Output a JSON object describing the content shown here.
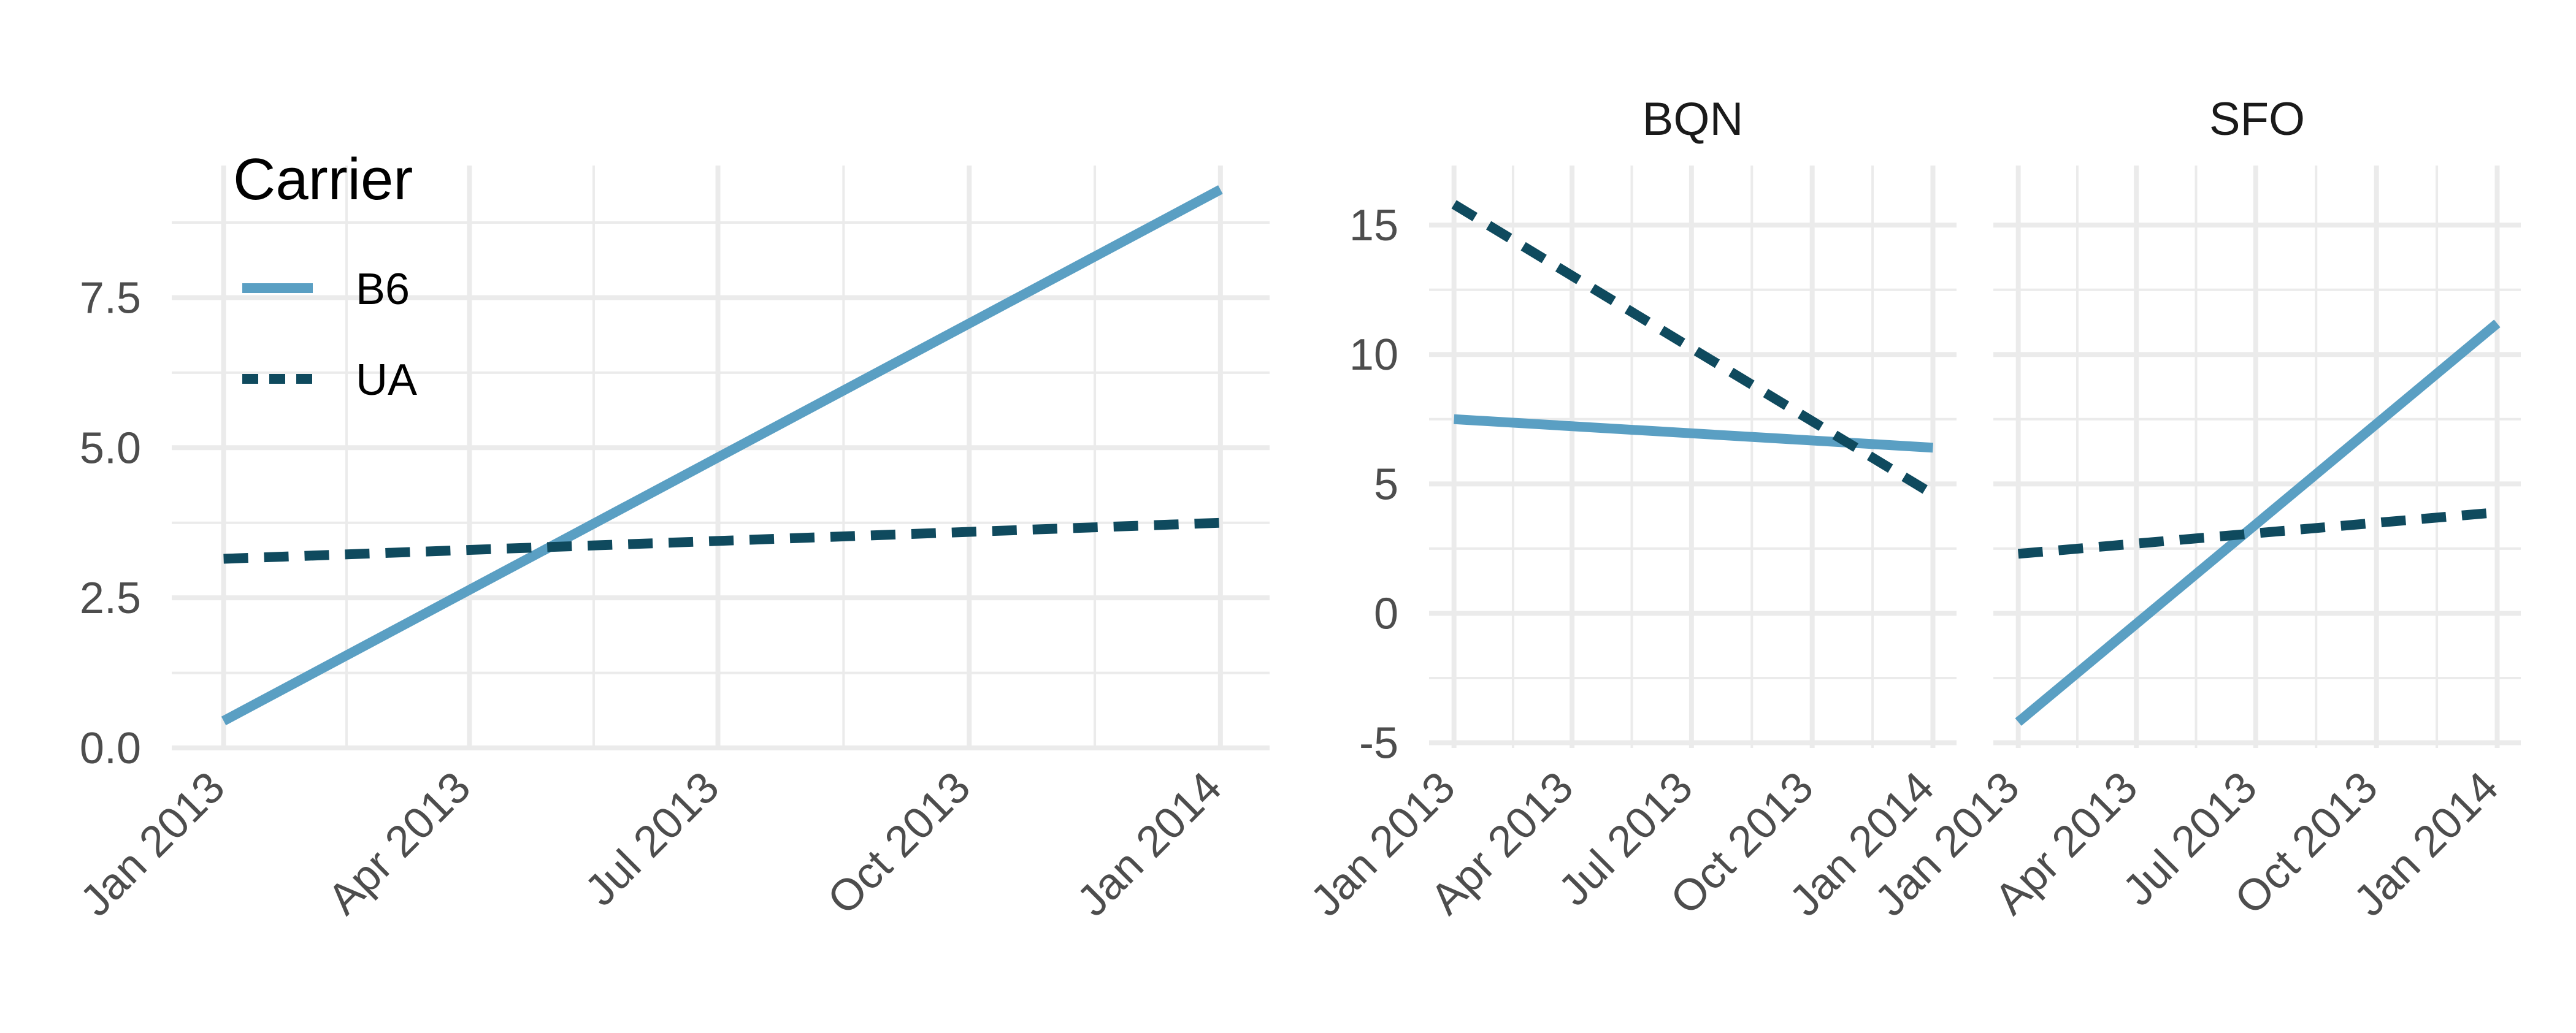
{
  "chart_data": [
    {
      "type": "line",
      "title": "",
      "xlabel": "",
      "ylabel": "",
      "x_ticks": [
        {
          "value": "2013-01-01",
          "label": "Jan 2013"
        },
        {
          "value": "2013-04-01",
          "label": "Apr 2013"
        },
        {
          "value": "2013-07-01",
          "label": "Jul 2013"
        },
        {
          "value": "2013-10-01",
          "label": "Oct 2013"
        },
        {
          "value": "2014-01-01",
          "label": "Jan 2014"
        }
      ],
      "xlim": [
        "2012-12-13",
        "2014-01-19"
      ],
      "y_ticks": [
        {
          "value": 0,
          "label": "0.0"
        },
        {
          "value": 2.5,
          "label": "2.5"
        },
        {
          "value": 5,
          "label": "5.0"
        },
        {
          "value": 7.5,
          "label": "7.5"
        }
      ],
      "ylim": [
        0,
        9.7
      ],
      "grid": true,
      "legend": {
        "title": "Carrier",
        "position": "top-left",
        "entries": [
          {
            "label": "B6",
            "color": "#5a9fc3",
            "dash": "solid"
          },
          {
            "label": "UA",
            "color": "#0f4a5e",
            "dash": "dashed"
          }
        ]
      },
      "series": [
        {
          "name": "B6",
          "color": "#5a9fc3",
          "dash": "solid",
          "x": [
            "2013-01-01",
            "2014-01-01"
          ],
          "y": [
            0.45,
            9.3
          ]
        },
        {
          "name": "UA",
          "color": "#0f4a5e",
          "dash": "dashed",
          "x": [
            "2013-01-01",
            "2014-01-01"
          ],
          "y": [
            3.15,
            3.75
          ]
        }
      ]
    },
    {
      "type": "line",
      "facets": [
        {
          "label": "BQN",
          "series": [
            {
              "name": "B6",
              "color": "#5a9fc3",
              "dash": "solid",
              "x": [
                "2013-01-01",
                "2014-01-01"
              ],
              "y": [
                7.5,
                6.4
              ]
            },
            {
              "name": "UA",
              "color": "#0f4a5e",
              "dash": "dashed",
              "x": [
                "2013-01-01",
                "2014-01-01"
              ],
              "y": [
                15.8,
                4.6
              ]
            }
          ]
        },
        {
          "label": "SFO",
          "series": [
            {
              "name": "B6",
              "color": "#5a9fc3",
              "dash": "solid",
              "x": [
                "2013-01-01",
                "2014-01-01"
              ],
              "y": [
                -4.2,
                11.2
              ]
            },
            {
              "name": "UA",
              "color": "#0f4a5e",
              "dash": "dashed",
              "x": [
                "2013-01-01",
                "2014-01-01"
              ],
              "y": [
                2.3,
                3.9
              ]
            }
          ]
        }
      ],
      "x_ticks": [
        {
          "value": "2013-01-01",
          "label": "Jan 2013"
        },
        {
          "value": "2013-04-01",
          "label": "Apr 2013"
        },
        {
          "value": "2013-07-01",
          "label": "Jul 2013"
        },
        {
          "value": "2013-10-01",
          "label": "Oct 2013"
        },
        {
          "value": "2014-01-01",
          "label": "Jan 2014"
        }
      ],
      "xlim": [
        "2012-12-13",
        "2014-01-19"
      ],
      "y_ticks": [
        {
          "value": -5,
          "label": "-5"
        },
        {
          "value": 0,
          "label": "0"
        },
        {
          "value": 5,
          "label": "5"
        },
        {
          "value": 10,
          "label": "10"
        },
        {
          "value": 15,
          "label": "15"
        }
      ],
      "ylim": [
        -5.2,
        17.3
      ],
      "grid": true
    }
  ]
}
